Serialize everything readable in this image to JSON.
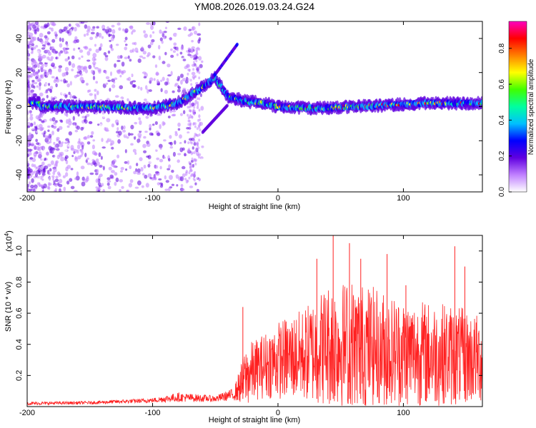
{
  "title": "YM08.2026.019.03.24.G24",
  "chart_data": [
    {
      "type": "heatmap",
      "name": "spectrogram",
      "xlabel": "Height of straight line (km)",
      "ylabel": "Frequency (Hz)",
      "xlim": [
        -200,
        163
      ],
      "ylim": [
        -50,
        50
      ],
      "x_ticks": [
        -200,
        -100,
        0,
        100
      ],
      "y_ticks": [
        -40,
        -20,
        0,
        20,
        40
      ],
      "colorbar": {
        "label": "Normalized spectral amplitude",
        "range": [
          0,
          0.95
        ],
        "ticks": [
          0.0,
          0.2,
          0.4,
          0.6,
          0.8
        ],
        "colors": [
          "#ffffff",
          "#c080ff",
          "#6000e0",
          "#0000ff",
          "#00c0ff",
          "#00ffa0",
          "#40ff00",
          "#ffff00",
          "#ff8000",
          "#ff0000",
          "#ff00c0"
        ]
      },
      "ridge": [
        {
          "x": -190,
          "freq": 0
        },
        {
          "x": -150,
          "freq": 0
        },
        {
          "x": -100,
          "freq": -1
        },
        {
          "x": -80,
          "freq": 2
        },
        {
          "x": -65,
          "freq": 9
        },
        {
          "x": -50,
          "freq": 17
        },
        {
          "x": -40,
          "freq": 6
        },
        {
          "x": -25,
          "freq": 3
        },
        {
          "x": -10,
          "freq": 2
        },
        {
          "x": 0,
          "freq": 0
        },
        {
          "x": 30,
          "freq": -1
        },
        {
          "x": 60,
          "freq": 0
        },
        {
          "x": 90,
          "freq": 1
        },
        {
          "x": 120,
          "freq": 2
        },
        {
          "x": 163,
          "freq": 2
        }
      ]
    },
    {
      "type": "line",
      "name": "snr",
      "xlabel": "Height of straight line (km)",
      "ylabel": "SNR (10 * v/v)",
      "multiplier": "(x10",
      "multiplier_exp": "4",
      "xlim": [
        -200,
        163
      ],
      "ylim": [
        0,
        1.1
      ],
      "x_ticks": [
        -200,
        -100,
        0,
        100
      ],
      "y_ticks": [
        0.2,
        0.4,
        0.6,
        0.8,
        1.0
      ],
      "color": "#ff2020",
      "envelope": [
        {
          "x": -200,
          "mean": 0.02,
          "amp": 0.01
        },
        {
          "x": -150,
          "mean": 0.025,
          "amp": 0.01
        },
        {
          "x": -100,
          "mean": 0.04,
          "amp": 0.015
        },
        {
          "x": -80,
          "mean": 0.06,
          "amp": 0.03
        },
        {
          "x": -50,
          "mean": 0.05,
          "amp": 0.02
        },
        {
          "x": -35,
          "mean": 0.08,
          "amp": 0.04
        },
        {
          "x": -25,
          "mean": 0.2,
          "amp": 0.2
        },
        {
          "x": -15,
          "mean": 0.25,
          "amp": 0.2
        },
        {
          "x": 0,
          "mean": 0.3,
          "amp": 0.25
        },
        {
          "x": 20,
          "mean": 0.33,
          "amp": 0.3
        },
        {
          "x": 40,
          "mean": 0.4,
          "amp": 0.4
        },
        {
          "x": 60,
          "mean": 0.4,
          "amp": 0.42
        },
        {
          "x": 100,
          "mean": 0.35,
          "amp": 0.35
        },
        {
          "x": 140,
          "mean": 0.33,
          "amp": 0.33
        },
        {
          "x": 163,
          "mean": 0.3,
          "amp": 0.28
        }
      ],
      "peaks": [
        {
          "x": -28,
          "y": 0.64
        },
        {
          "x": 31,
          "y": 0.95
        },
        {
          "x": 44,
          "y": 1.1
        },
        {
          "x": 57,
          "y": 1.05
        },
        {
          "x": 66,
          "y": 0.95
        },
        {
          "x": 87,
          "y": 0.98
        },
        {
          "x": 102,
          "y": 0.78
        },
        {
          "x": 141,
          "y": 1.03
        },
        {
          "x": 149,
          "y": 0.9
        }
      ]
    }
  ]
}
